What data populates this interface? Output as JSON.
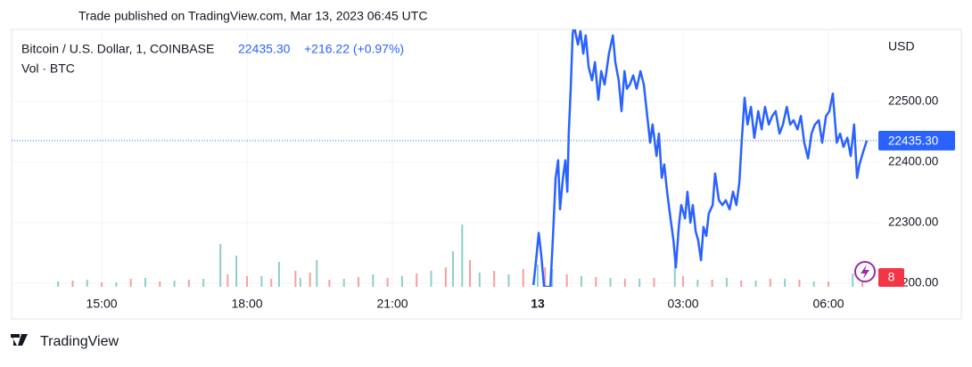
{
  "published": "Trade published on TradingView.com, Mar 13, 2023 06:45 UTC",
  "footer": "TradingView",
  "badge": 8,
  "chart_data": {
    "type": "line",
    "title": "Bitcoin / U.S. Dollar, 1, COINBASE",
    "change": "+216.22 (+0.97%)",
    "y_unit": "USD",
    "grid": true,
    "price_line": {
      "value": 22435.3,
      "label": "22435.30"
    },
    "xlim": [
      -10.86,
      7.03
    ],
    "xticks": [
      {
        "value": -9,
        "label": "15:00"
      },
      {
        "value": -6,
        "label": "18:00"
      },
      {
        "value": -3,
        "label": "21:00"
      },
      {
        "value": 0,
        "label": "13"
      },
      {
        "value": 3,
        "label": "03:00"
      },
      {
        "value": 6,
        "label": "06:00"
      }
    ],
    "ylim": [
      22194,
      22619
    ],
    "yticks": [
      {
        "value": 22200,
        "label": "22200.00"
      },
      {
        "value": 22300,
        "label": "22300.00"
      },
      {
        "value": 22400,
        "label": "22400.00"
      },
      {
        "value": 22500,
        "label": "22500.00"
      }
    ],
    "series": [
      {
        "name": "Bitcoin / U.S. Dollar, 1, COINBASE",
        "color": "#2962ff",
        "x": [
          -0.09,
          -0.04,
          0.02,
          0.07,
          0.13,
          0.26,
          0.31,
          0.37,
          0.42,
          0.46,
          0.52,
          0.57,
          0.61,
          0.64,
          0.68,
          0.72,
          0.75,
          0.83,
          0.88,
          0.94,
          0.99,
          1.05,
          1.12,
          1.18,
          1.25,
          1.31,
          1.38,
          1.47,
          1.55,
          1.6,
          1.67,
          1.73,
          1.79,
          1.84,
          1.9,
          1.97,
          2.04,
          2.12,
          2.19,
          2.26,
          2.32,
          2.37,
          2.45,
          2.5,
          2.56,
          2.61,
          2.67,
          2.74,
          2.8,
          2.85,
          2.91,
          2.96,
          3.04,
          3.09,
          3.15,
          3.2,
          3.26,
          3.31,
          3.37,
          3.42,
          3.48,
          3.53,
          3.61,
          3.66,
          3.74,
          3.81,
          3.88,
          3.96,
          4.03,
          4.1,
          4.16,
          4.21,
          4.27,
          4.33,
          4.4,
          4.47,
          4.55,
          4.62,
          4.69,
          4.77,
          4.84,
          4.91,
          4.99,
          5.06,
          5.14,
          5.21,
          5.28,
          5.36,
          5.43,
          5.5,
          5.58,
          5.65,
          5.72,
          5.8,
          5.87,
          5.95,
          6.02,
          6.09,
          6.17,
          6.24,
          6.31,
          6.39,
          6.46,
          6.53,
          6.59,
          6.64,
          6.72,
          6.79
        ],
        "values": [
          22197,
          22234,
          22283,
          22249,
          22194,
          22194,
          22271,
          22374,
          22403,
          22322,
          22374,
          22403,
          22351,
          22447,
          22521,
          22612,
          22624,
          22594,
          22616,
          22579,
          22609,
          22557,
          22535,
          22565,
          22503,
          22550,
          22528,
          22579,
          22609,
          22565,
          22535,
          22484,
          22550,
          22521,
          22528,
          22543,
          22521,
          22550,
          22528,
          22476,
          22432,
          22462,
          22410,
          22447,
          22374,
          22396,
          22351,
          22307,
          22271,
          22226,
          22293,
          22329,
          22307,
          22351,
          22300,
          22329,
          22285,
          22271,
          22238,
          22293,
          22278,
          22315,
          22329,
          22381,
          22337,
          22329,
          22337,
          22322,
          22351,
          22329,
          22366,
          22435,
          22506,
          22462,
          22491,
          22440,
          22484,
          22454,
          22491,
          22462,
          22476,
          22484,
          22447,
          22462,
          22491,
          22462,
          22469,
          22454,
          22476,
          22432,
          22406,
          22447,
          22462,
          22469,
          22432,
          22476,
          22484,
          22513,
          22432,
          22447,
          22425,
          22440,
          22410,
          22462,
          22374,
          22396,
          22418,
          22435.3
        ]
      }
    ],
    "volume": {
      "label": "Vol · BTC",
      "vlim": [
        0,
        100
      ],
      "up": {
        "color": "#8fcfc6",
        "x": [
          -9.9,
          -9.3,
          -8.7,
          -8.1,
          -7.5,
          -6.9,
          -6.55,
          -6.22,
          -5.7,
          -5.34,
          -4.9,
          -4.56,
          -4.0,
          -3.4,
          -2.8,
          -2.2,
          -1.75,
          -1.56,
          -1.2,
          -0.6,
          0.0,
          0.3,
          0.9,
          1.5,
          2.1,
          2.83,
          3.3,
          3.9,
          4.5,
          5.1,
          5.7,
          6.5
        ],
        "values": [
          6,
          8,
          5,
          10,
          7,
          9,
          48,
          35,
          12,
          28,
          10,
          30,
          9,
          14,
          12,
          18,
          40,
          70,
          16,
          14,
          25,
          20,
          12,
          10,
          9,
          25,
          8,
          10,
          7,
          9,
          6,
          15
        ]
      },
      "down": {
        "color": "#f4a09c",
        "x": [
          -9.6,
          -9.0,
          -8.4,
          -7.8,
          -7.2,
          -6.4,
          -6.0,
          -5.5,
          -5.0,
          -4.7,
          -4.3,
          -3.7,
          -3.1,
          -2.5,
          -1.9,
          -1.4,
          -0.9,
          -0.3,
          0.15,
          0.6,
          1.2,
          1.8,
          2.4,
          3.0,
          3.6,
          4.2,
          4.8,
          5.4,
          6.0,
          6.7
        ],
        "values": [
          7,
          5,
          9,
          6,
          8,
          14,
          12,
          9,
          18,
          16,
          8,
          11,
          10,
          15,
          22,
          30,
          18,
          20,
          22,
          14,
          11,
          9,
          10,
          12,
          8,
          7,
          9,
          8,
          6,
          8
        ]
      }
    }
  }
}
